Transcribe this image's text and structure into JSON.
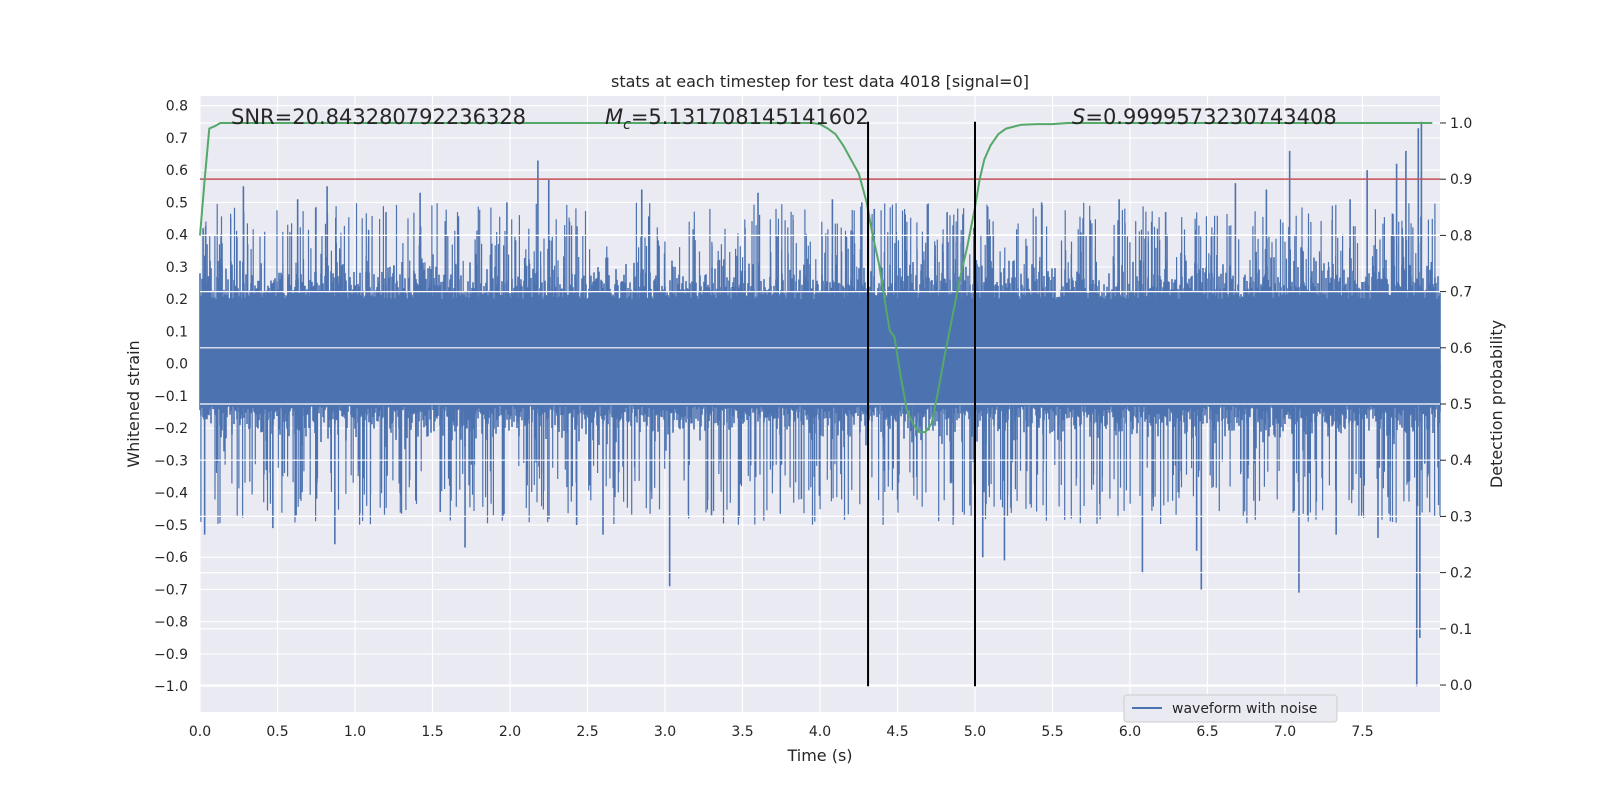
{
  "chart_data": {
    "type": "line",
    "title": "stats at each timestep for test data 4018 [signal=0]",
    "xlabel": "Time (s)",
    "ylabel": "Whitened strain",
    "y2label": "Detection probability",
    "xlim": [
      0.0,
      8.0
    ],
    "ylim": [
      -1.08,
      0.83
    ],
    "y2lim": [
      -0.048,
      1.048
    ],
    "xticks": [
      "0.0",
      "0.5",
      "1.0",
      "1.5",
      "2.0",
      "2.5",
      "3.0",
      "3.5",
      "4.0",
      "4.5",
      "5.0",
      "5.5",
      "6.0",
      "6.5",
      "7.0",
      "7.5"
    ],
    "yticks": [
      "0.8",
      "0.7",
      "0.6",
      "0.5",
      "0.4",
      "0.3",
      "0.2",
      "0.1",
      "0.0",
      "−0.1",
      "−0.2",
      "−0.3",
      "−0.4",
      "−0.5",
      "−0.6",
      "−0.7",
      "−0.8",
      "−0.9",
      "−1.0"
    ],
    "y2ticks": [
      "1.0",
      "0.9",
      "0.8",
      "0.7",
      "0.6",
      "0.5",
      "0.4",
      "0.3",
      "0.2",
      "0.1",
      "0.0"
    ],
    "annotations": {
      "snr": "SNR=20.843280792236328",
      "mc_symbol": "M",
      "mc_sub": "c",
      "mc_value": "=5.131708145141602",
      "s_symbol": "S",
      "s_value": "=0.9999573230743408"
    },
    "threshold": {
      "value": 0.9,
      "axis": "right",
      "color": "#c44e52"
    },
    "vlines": [
      {
        "x": 4.31,
        "ymin": -1.0,
        "ymax": 0.75,
        "color": "#000000"
      },
      {
        "x": 5.0,
        "ymin": -1.0,
        "ymax": 0.75,
        "color": "#000000"
      }
    ],
    "series": [
      {
        "name": "waveform with noise",
        "axis": "left",
        "color": "#4c72b0",
        "kind": "noise",
        "duration": 8.0,
        "band": [
          -0.3,
          0.38
        ],
        "spikes": [
          {
            "t": 0.02,
            "v": 0.42
          },
          {
            "t": 0.03,
            "v": -0.53
          },
          {
            "t": 0.28,
            "v": 0.55
          },
          {
            "t": 0.47,
            "v": -0.51
          },
          {
            "t": 0.63,
            "v": 0.51
          },
          {
            "t": 0.62,
            "v": -0.47
          },
          {
            "t": 0.82,
            "v": 0.55
          },
          {
            "t": 0.87,
            "v": -0.56
          },
          {
            "t": 1.2,
            "v": 0.47
          },
          {
            "t": 1.42,
            "v": 0.53
          },
          {
            "t": 1.55,
            "v": -0.46
          },
          {
            "t": 1.71,
            "v": -0.57
          },
          {
            "t": 1.98,
            "v": 0.5
          },
          {
            "t": 2.18,
            "v": 0.63
          },
          {
            "t": 2.25,
            "v": 0.57
          },
          {
            "t": 2.43,
            "v": -0.5
          },
          {
            "t": 2.6,
            "v": -0.53
          },
          {
            "t": 2.85,
            "v": 0.54
          },
          {
            "t": 3.03,
            "v": -0.69
          },
          {
            "t": 3.3,
            "v": -0.47
          },
          {
            "t": 3.6,
            "v": 0.53
          },
          {
            "t": 3.88,
            "v": -0.42
          },
          {
            "t": 4.08,
            "v": 0.51
          },
          {
            "t": 4.27,
            "v": 0.5
          },
          {
            "t": 4.35,
            "v": 0.48
          },
          {
            "t": 4.82,
            "v": 0.47
          },
          {
            "t": 4.86,
            "v": -0.48
          },
          {
            "t": 5.05,
            "v": -0.6
          },
          {
            "t": 5.19,
            "v": -0.61
          },
          {
            "t": 5.43,
            "v": 0.5
          },
          {
            "t": 5.93,
            "v": 0.51
          },
          {
            "t": 6.08,
            "v": -0.65
          },
          {
            "t": 6.23,
            "v": 0.47
          },
          {
            "t": 6.43,
            "v": -0.58
          },
          {
            "t": 6.46,
            "v": -0.7
          },
          {
            "t": 6.68,
            "v": 0.56
          },
          {
            "t": 6.88,
            "v": 0.54
          },
          {
            "t": 7.03,
            "v": 0.66
          },
          {
            "t": 7.09,
            "v": -0.71
          },
          {
            "t": 7.33,
            "v": -0.53
          },
          {
            "t": 7.42,
            "v": 0.51
          },
          {
            "t": 7.53,
            "v": 0.6
          },
          {
            "t": 7.6,
            "v": -0.54
          },
          {
            "t": 7.72,
            "v": 0.62
          },
          {
            "t": 7.78,
            "v": 0.66
          },
          {
            "t": 7.86,
            "v": 0.73
          },
          {
            "t": 7.88,
            "v": 0.75
          },
          {
            "t": 7.85,
            "v": -1.0
          },
          {
            "t": 7.87,
            "v": -0.85
          }
        ]
      },
      {
        "name": "detection probability",
        "axis": "right",
        "color": "#55a868",
        "kind": "line",
        "x": [
          0.0,
          0.03,
          0.06,
          0.1,
          0.13,
          0.2,
          1.0,
          2.0,
          3.0,
          3.8,
          3.95,
          4.0,
          4.05,
          4.1,
          4.15,
          4.2,
          4.25,
          4.3,
          4.34,
          4.38,
          4.42,
          4.45,
          4.48,
          4.52,
          4.56,
          4.6,
          4.64,
          4.68,
          4.72,
          4.76,
          4.8,
          4.85,
          4.9,
          4.95,
          5.0,
          5.03,
          5.06,
          5.1,
          5.15,
          5.2,
          5.3,
          5.4,
          5.5,
          5.6,
          6.0,
          6.5,
          7.0,
          7.5,
          7.95
        ],
        "y": [
          0.8,
          0.9,
          0.99,
          0.995,
          1.0,
          1.0,
          1.0,
          1.0,
          1.0,
          1.0,
          1.0,
          0.998,
          0.99,
          0.98,
          0.96,
          0.935,
          0.91,
          0.86,
          0.8,
          0.75,
          0.68,
          0.63,
          0.62,
          0.55,
          0.49,
          0.465,
          0.45,
          0.45,
          0.465,
          0.52,
          0.58,
          0.65,
          0.72,
          0.78,
          0.85,
          0.9,
          0.935,
          0.96,
          0.98,
          0.99,
          0.997,
          0.998,
          0.998,
          1.0,
          1.0,
          1.0,
          1.0,
          1.0,
          1.0
        ]
      }
    ],
    "legend": {
      "position": "lower-right",
      "entries": [
        "waveform with noise"
      ]
    }
  }
}
